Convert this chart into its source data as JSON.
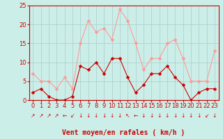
{
  "title": "",
  "xlabel": "Vent moyen/en rafales ( km/h )",
  "background_color": "#cceee8",
  "grid_color": "#aacccc",
  "x_labels": [
    "0",
    "1",
    "2",
    "3",
    "4",
    "5",
    "6",
    "7",
    "8",
    "9",
    "10",
    "11",
    "12",
    "13",
    "14",
    "15",
    "16",
    "17",
    "18",
    "19",
    "20",
    "21",
    "22",
    "23"
  ],
  "mean_wind": [
    2,
    3,
    1,
    0,
    0,
    1,
    9,
    8,
    10,
    7,
    11,
    11,
    6,
    2,
    4,
    7,
    7,
    9,
    6,
    4,
    0,
    2,
    3,
    3
  ],
  "gust_wind": [
    7,
    5,
    5,
    3,
    6,
    3,
    15,
    21,
    18,
    19,
    16,
    24,
    21,
    15,
    8,
    11,
    11,
    15,
    16,
    11,
    5,
    5,
    5,
    13
  ],
  "mean_color": "#cc0000",
  "gust_color": "#ff9999",
  "ylim": [
    0,
    25
  ],
  "yticks": [
    0,
    5,
    10,
    15,
    20,
    25
  ],
  "arrow_symbols": [
    "↗",
    "↗",
    "↗",
    "↗",
    "←",
    "↙",
    "↓",
    "↓",
    "↓",
    "↓",
    "↓",
    "↓",
    "↖",
    "←",
    "↓",
    "↓",
    "↓",
    "↓",
    "↓",
    "↓",
    "↓",
    "↓",
    "↙",
    "↓"
  ],
  "tick_fontsize": 6,
  "arrow_fontsize": 5.5,
  "xlabel_fontsize": 7,
  "linewidth": 0.8,
  "markersize": 2.5
}
